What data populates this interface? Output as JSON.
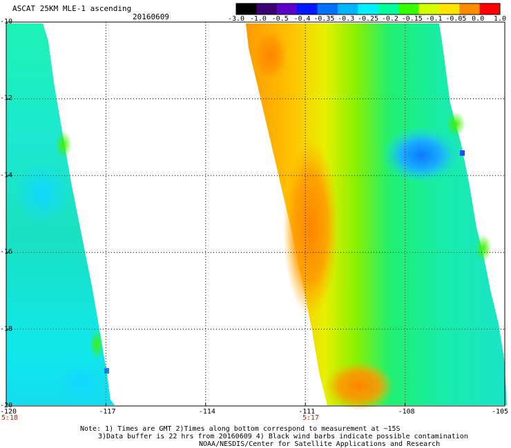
{
  "header": {
    "title": "ASCAT 25KM MLE-1 ascending",
    "date": "20160609"
  },
  "colorbar": {
    "tick_labels": [
      "-3.0",
      "-1.0",
      "-0.5",
      "-0.4",
      "-0.35",
      "-0.3",
      "-0.25",
      "-0.2",
      "-0.15",
      "-0.1",
      "-0.05",
      "0.0",
      "1.0"
    ],
    "colors": [
      "#000000",
      "#3a0070",
      "#5a00c8",
      "#0018ff",
      "#0070ff",
      "#00b4ff",
      "#00f0ff",
      "#00ff9c",
      "#38ff00",
      "#d4ff00",
      "#ffe400",
      "#ff8c00",
      "#ff0000"
    ]
  },
  "map": {
    "lon_range": [
      -120,
      -105
    ],
    "lat_range": [
      -20,
      -10
    ],
    "lon_tick_labels": [
      "-120",
      "-117",
      "-114",
      "-111",
      "-108",
      "-105"
    ],
    "lat_tick_labels": [
      "-10",
      "-12",
      "-14",
      "-16",
      "-18",
      "-20"
    ],
    "time_labels": [
      "5:18",
      "5:17"
    ],
    "grid": "dotted"
  },
  "notes": {
    "line1": "Note: 1) Times are GMT 2)Times along bottom correspond to measurement at ~15S",
    "line2": "3)Data buffer is 22 hrs from 20160609 4) Black wind barbs indicate possible contamination",
    "line3": "NOAA/NESDIS/Center for Satellite Applications and Research"
  }
}
